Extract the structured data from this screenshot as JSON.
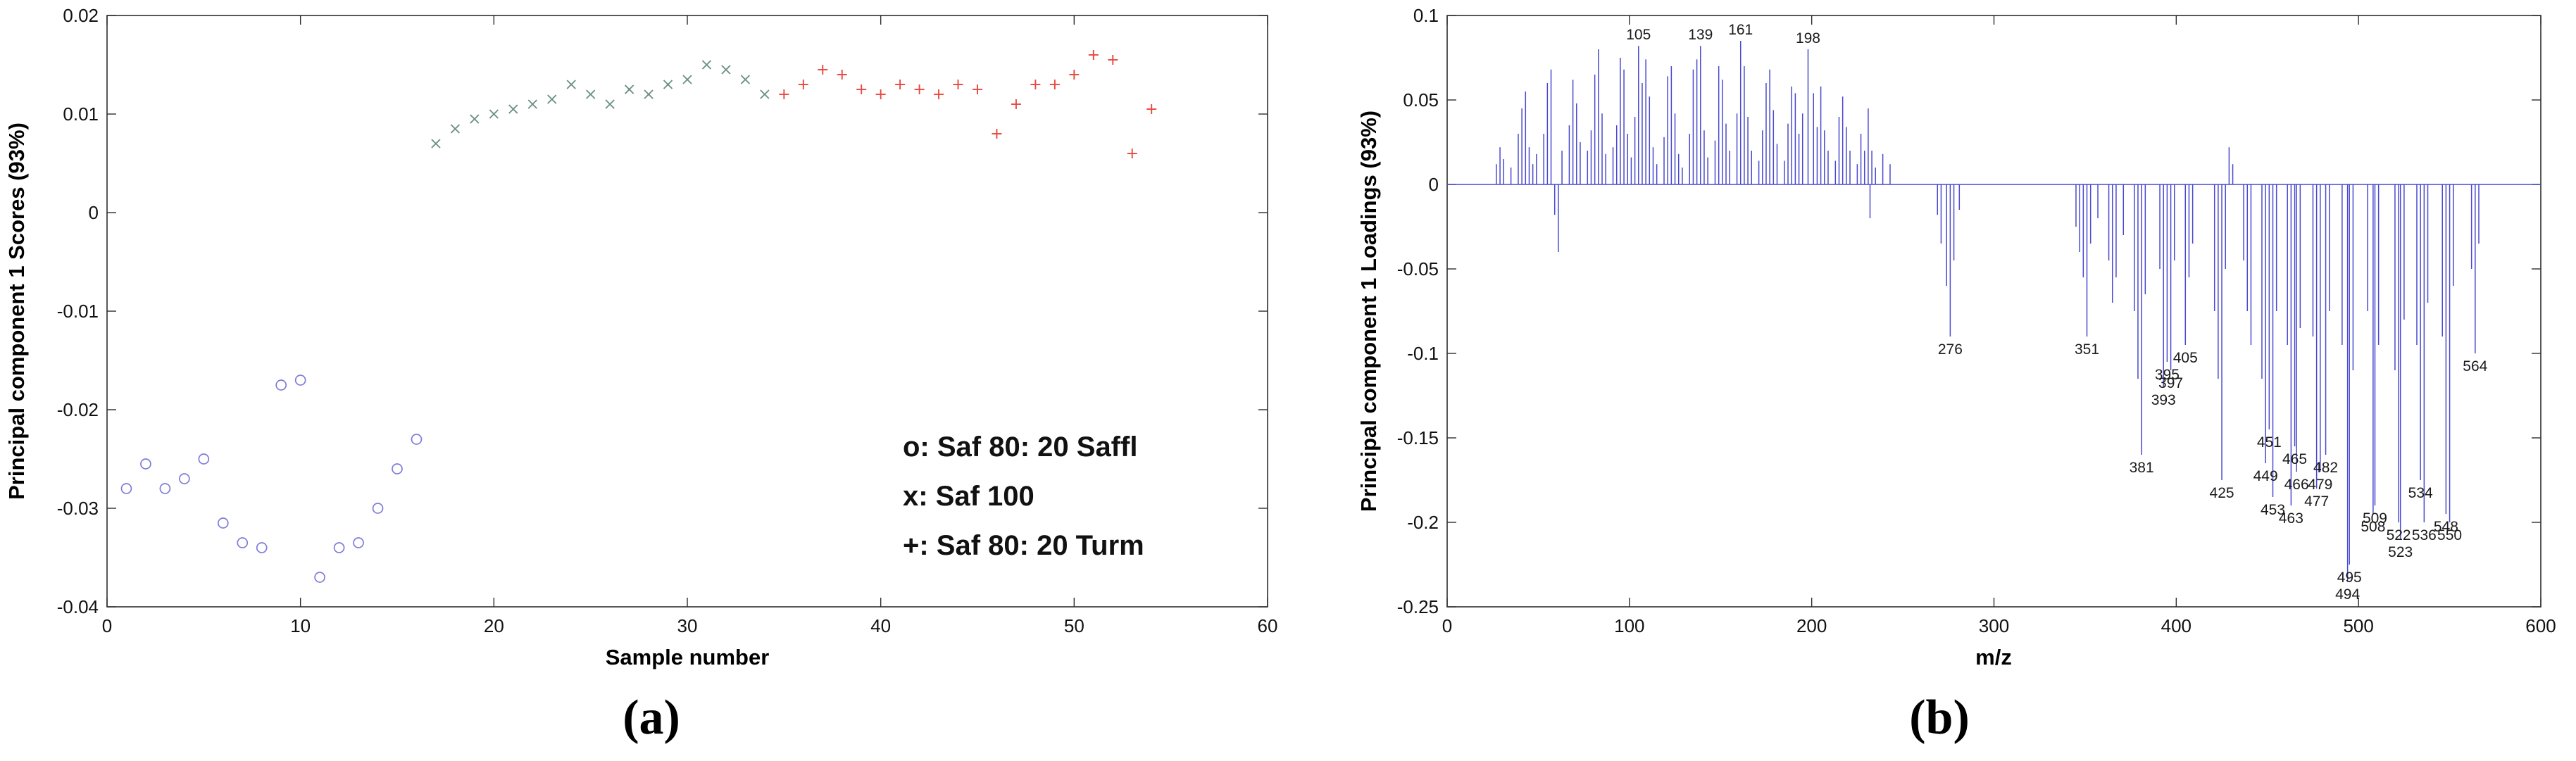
{
  "figure": {
    "captions": [
      "(a)",
      "(b)"
    ]
  },
  "chart_data": [
    {
      "type": "scatter",
      "title": "",
      "xlabel": "Sample number",
      "ylabel": "Principal component 1 Scores (93%)",
      "xlim": [
        0,
        60
      ],
      "ylim": [
        -0.04,
        0.02
      ],
      "grid": false,
      "xticks": [
        {
          "v": 0,
          "label": "0"
        },
        {
          "v": 10,
          "label": "10"
        },
        {
          "v": 20,
          "label": "20"
        },
        {
          "v": 30,
          "label": "30"
        },
        {
          "v": 40,
          "label": "40"
        },
        {
          "v": 50,
          "label": "50"
        },
        {
          "v": 60,
          "label": "60"
        }
      ],
      "yticks": [
        {
          "v": 0.02,
          "label": "0.02"
        },
        {
          "v": 0.01,
          "label": "0.01"
        },
        {
          "v": 0,
          "label": "0"
        },
        {
          "v": -0.01,
          "label": "-0.01"
        },
        {
          "v": -0.02,
          "label": "-0.02"
        },
        {
          "v": -0.03,
          "label": "-0.03"
        },
        {
          "v": -0.04,
          "label": "-0.04"
        }
      ],
      "legend_position": "inside-lower-right",
      "legend": [
        {
          "label": "o: Saf 80: 20 Saffl",
          "color": "#0077D4"
        },
        {
          "label": "x: Saf 100",
          "color": "#009933"
        },
        {
          "label": "+: Saf 80: 20 Turm",
          "color": "#FF2222"
        }
      ],
      "series": [
        {
          "name": "Saf 80: 20 Saffl",
          "marker": "o",
          "color": "#7C7CDB",
          "points": [
            [
              1,
              -0.028
            ],
            [
              2,
              -0.0255
            ],
            [
              3,
              -0.028
            ],
            [
              4,
              -0.027
            ],
            [
              5,
              -0.025
            ],
            [
              6,
              -0.0315
            ],
            [
              7,
              -0.0335
            ],
            [
              8,
              -0.034
            ],
            [
              9,
              -0.0175
            ],
            [
              10,
              -0.017
            ],
            [
              11,
              -0.037
            ],
            [
              12,
              -0.034
            ],
            [
              13,
              -0.0335
            ],
            [
              14,
              -0.03
            ],
            [
              15,
              -0.026
            ],
            [
              16,
              -0.023
            ]
          ]
        },
        {
          "name": "Saf 100",
          "marker": "x",
          "color": "#6B9181",
          "points": [
            [
              17,
              0.007
            ],
            [
              18,
              0.0085
            ],
            [
              19,
              0.0095
            ],
            [
              20,
              0.01
            ],
            [
              21,
              0.0105
            ],
            [
              22,
              0.011
            ],
            [
              23,
              0.0115
            ],
            [
              24,
              0.013
            ],
            [
              25,
              0.012
            ],
            [
              26,
              0.011
            ],
            [
              27,
              0.0125
            ],
            [
              28,
              0.012
            ],
            [
              29,
              0.013
            ],
            [
              30,
              0.0135
            ],
            [
              31,
              0.015
            ],
            [
              32,
              0.0145
            ],
            [
              33,
              0.0135
            ],
            [
              34,
              0.012
            ]
          ]
        },
        {
          "name": "Saf 80: 20 Turm",
          "marker": "+",
          "color": "#E8473F",
          "points": [
            [
              35,
              0.012
            ],
            [
              36,
              0.013
            ],
            [
              37,
              0.0145
            ],
            [
              38,
              0.014
            ],
            [
              39,
              0.0125
            ],
            [
              40,
              0.012
            ],
            [
              41,
              0.013
            ],
            [
              42,
              0.0125
            ],
            [
              43,
              0.012
            ],
            [
              44,
              0.013
            ],
            [
              45,
              0.0125
            ],
            [
              46,
              0.008
            ],
            [
              47,
              0.011
            ],
            [
              48,
              0.013
            ],
            [
              49,
              0.013
            ],
            [
              50,
              0.014
            ],
            [
              51,
              0.016
            ],
            [
              52,
              0.0155
            ],
            [
              53,
              0.006
            ],
            [
              54,
              0.0105
            ]
          ]
        }
      ]
    },
    {
      "type": "stem",
      "title": "",
      "xlabel": "m/z",
      "ylabel": "Principal component 1 Loadings (93%)",
      "xlim": [
        0,
        600
      ],
      "ylim": [
        -0.25,
        0.1
      ],
      "grid": false,
      "stem_color": "#4949D1",
      "label_color": "#1a1a1a",
      "xticks": [
        {
          "v": 0,
          "label": "0"
        },
        {
          "v": 100,
          "label": "100"
        },
        {
          "v": 200,
          "label": "200"
        },
        {
          "v": 300,
          "label": "300"
        },
        {
          "v": 400,
          "label": "400"
        },
        {
          "v": 500,
          "label": "500"
        },
        {
          "v": 600,
          "label": "600"
        }
      ],
      "yticks": [
        {
          "v": 0.1,
          "label": "0.1"
        },
        {
          "v": 0.05,
          "label": "0.05"
        },
        {
          "v": 0,
          "label": "0"
        },
        {
          "v": -0.05,
          "label": "-0.05"
        },
        {
          "v": -0.1,
          "label": "-0.1"
        },
        {
          "v": -0.15,
          "label": "-0.15"
        },
        {
          "v": -0.2,
          "label": "-0.2"
        },
        {
          "v": -0.25,
          "label": "-0.25"
        }
      ],
      "stems": [
        [
          27,
          0.012
        ],
        [
          29,
          0.022
        ],
        [
          31,
          0.015
        ],
        [
          35,
          0.01
        ],
        [
          39,
          0.03
        ],
        [
          41,
          0.045
        ],
        [
          43,
          0.055
        ],
        [
          45,
          0.022
        ],
        [
          47,
          0.012
        ],
        [
          49,
          0.018
        ],
        [
          53,
          0.03
        ],
        [
          55,
          0.06
        ],
        [
          57,
          0.068
        ],
        [
          59,
          -0.018
        ],
        [
          61,
          -0.04
        ],
        [
          63,
          0.02
        ],
        [
          67,
          0.035
        ],
        [
          69,
          0.062
        ],
        [
          71,
          0.048
        ],
        [
          73,
          0.025
        ],
        [
          77,
          0.02
        ],
        [
          79,
          0.032
        ],
        [
          81,
          0.065
        ],
        [
          83,
          0.08
        ],
        [
          85,
          0.042
        ],
        [
          87,
          0.018
        ],
        [
          91,
          0.022
        ],
        [
          93,
          0.035
        ],
        [
          95,
          0.075
        ],
        [
          97,
          0.068
        ],
        [
          99,
          0.03
        ],
        [
          101,
          0.016
        ],
        [
          103,
          0.04
        ],
        [
          105,
          0.082
        ],
        [
          107,
          0.06
        ],
        [
          109,
          0.074
        ],
        [
          111,
          0.052
        ],
        [
          113,
          0.022
        ],
        [
          115,
          0.012
        ],
        [
          119,
          0.028
        ],
        [
          121,
          0.064
        ],
        [
          123,
          0.07
        ],
        [
          125,
          0.042
        ],
        [
          127,
          0.018
        ],
        [
          129,
          0.01
        ],
        [
          133,
          0.03
        ],
        [
          135,
          0.068
        ],
        [
          137,
          0.074
        ],
        [
          139,
          0.082
        ],
        [
          141,
          0.032
        ],
        [
          143,
          0.016
        ],
        [
          147,
          0.026
        ],
        [
          149,
          0.07
        ],
        [
          151,
          0.062
        ],
        [
          153,
          0.036
        ],
        [
          155,
          0.02
        ],
        [
          159,
          0.042
        ],
        [
          161,
          0.085
        ],
        [
          163,
          0.07
        ],
        [
          165,
          0.04
        ],
        [
          167,
          0.02
        ],
        [
          171,
          0.014
        ],
        [
          173,
          0.032
        ],
        [
          175,
          0.06
        ],
        [
          177,
          0.068
        ],
        [
          179,
          0.044
        ],
        [
          181,
          0.024
        ],
        [
          185,
          0.014
        ],
        [
          187,
          0.036
        ],
        [
          189,
          0.058
        ],
        [
          191,
          0.054
        ],
        [
          193,
          0.03
        ],
        [
          195,
          0.042
        ],
        [
          198,
          0.08
        ],
        [
          201,
          0.054
        ],
        [
          203,
          0.034
        ],
        [
          205,
          0.058
        ],
        [
          207,
          0.032
        ],
        [
          209,
          0.02
        ],
        [
          213,
          0.014
        ],
        [
          215,
          0.04
        ],
        [
          217,
          0.052
        ],
        [
          219,
          0.034
        ],
        [
          221,
          0.02
        ],
        [
          225,
          0.012
        ],
        [
          227,
          0.03
        ],
        [
          229,
          0.02
        ],
        [
          231,
          0.045
        ],
        [
          232,
          -0.02
        ],
        [
          233,
          0.02
        ],
        [
          235,
          0.01
        ],
        [
          239,
          0.018
        ],
        [
          243,
          0.012
        ],
        [
          269,
          -0.018
        ],
        [
          271,
          -0.035
        ],
        [
          274,
          -0.06
        ],
        [
          276,
          -0.09
        ],
        [
          278,
          -0.045
        ],
        [
          281,
          -0.015
        ],
        [
          345,
          -0.025
        ],
        [
          347,
          -0.04
        ],
        [
          349,
          -0.055
        ],
        [
          351,
          -0.09
        ],
        [
          353,
          -0.035
        ],
        [
          357,
          -0.02
        ],
        [
          363,
          -0.045
        ],
        [
          365,
          -0.07
        ],
        [
          367,
          -0.055
        ],
        [
          371,
          -0.03
        ],
        [
          377,
          -0.075
        ],
        [
          379,
          -0.115
        ],
        [
          381,
          -0.16
        ],
        [
          383,
          -0.065
        ],
        [
          391,
          -0.05
        ],
        [
          393,
          -0.12
        ],
        [
          395,
          -0.105
        ],
        [
          397,
          -0.11
        ],
        [
          399,
          -0.045
        ],
        [
          405,
          -0.095
        ],
        [
          407,
          -0.055
        ],
        [
          409,
          -0.035
        ],
        [
          421,
          -0.075
        ],
        [
          423,
          -0.115
        ],
        [
          425,
          -0.175
        ],
        [
          427,
          -0.05
        ],
        [
          429,
          0.022
        ],
        [
          431,
          0.012
        ],
        [
          437,
          -0.045
        ],
        [
          439,
          -0.075
        ],
        [
          441,
          -0.095
        ],
        [
          447,
          -0.115
        ],
        [
          449,
          -0.165
        ],
        [
          451,
          -0.145
        ],
        [
          453,
          -0.185
        ],
        [
          455,
          -0.075
        ],
        [
          461,
          -0.095
        ],
        [
          463,
          -0.19
        ],
        [
          465,
          -0.155
        ],
        [
          466,
          -0.17
        ],
        [
          468,
          -0.085
        ],
        [
          475,
          -0.09
        ],
        [
          477,
          -0.18
        ],
        [
          479,
          -0.17
        ],
        [
          482,
          -0.16
        ],
        [
          484,
          -0.075
        ],
        [
          491,
          -0.095
        ],
        [
          494,
          -0.235
        ],
        [
          495,
          -0.225
        ],
        [
          497,
          -0.11
        ],
        [
          505,
          -0.075
        ],
        [
          508,
          -0.195
        ],
        [
          509,
          -0.19
        ],
        [
          511,
          -0.095
        ],
        [
          520,
          -0.11
        ],
        [
          522,
          -0.2
        ],
        [
          523,
          -0.21
        ],
        [
          525,
          -0.08
        ],
        [
          532,
          -0.095
        ],
        [
          534,
          -0.175
        ],
        [
          536,
          -0.2
        ],
        [
          538,
          -0.07
        ],
        [
          546,
          -0.09
        ],
        [
          548,
          -0.195
        ],
        [
          550,
          -0.2
        ],
        [
          552,
          -0.06
        ],
        [
          562,
          -0.05
        ],
        [
          564,
          -0.1
        ],
        [
          566,
          -0.035
        ]
      ],
      "peak_labels": [
        {
          "x": 105,
          "text": "105"
        },
        {
          "x": 139,
          "text": "139"
        },
        {
          "x": 161,
          "text": "161"
        },
        {
          "x": 198,
          "text": "198"
        },
        {
          "x": 276,
          "text": "276"
        },
        {
          "x": 351,
          "text": "351"
        },
        {
          "x": 381,
          "text": "381"
        },
        {
          "x": 393,
          "text": "393"
        },
        {
          "x": 395,
          "text": "395"
        },
        {
          "x": 397,
          "text": "397"
        },
        {
          "x": 405,
          "text": "405"
        },
        {
          "x": 425,
          "text": "425"
        },
        {
          "x": 449,
          "text": "449"
        },
        {
          "x": 451,
          "text": "451"
        },
        {
          "x": 453,
          "text": "453"
        },
        {
          "x": 463,
          "text": "463"
        },
        {
          "x": 465,
          "text": "465"
        },
        {
          "x": 466,
          "text": "466"
        },
        {
          "x": 477,
          "text": "477"
        },
        {
          "x": 479,
          "text": "479"
        },
        {
          "x": 482,
          "text": "482"
        },
        {
          "x": 494,
          "text": "494"
        },
        {
          "x": 495,
          "text": "495"
        },
        {
          "x": 508,
          "text": "508"
        },
        {
          "x": 509,
          "text": "509"
        },
        {
          "x": 522,
          "text": "522"
        },
        {
          "x": 523,
          "text": "523"
        },
        {
          "x": 534,
          "text": "534"
        },
        {
          "x": 536,
          "text": "536"
        },
        {
          "x": 548,
          "text": "548"
        },
        {
          "x": 550,
          "text": "550"
        },
        {
          "x": 564,
          "text": "564"
        }
      ]
    }
  ]
}
